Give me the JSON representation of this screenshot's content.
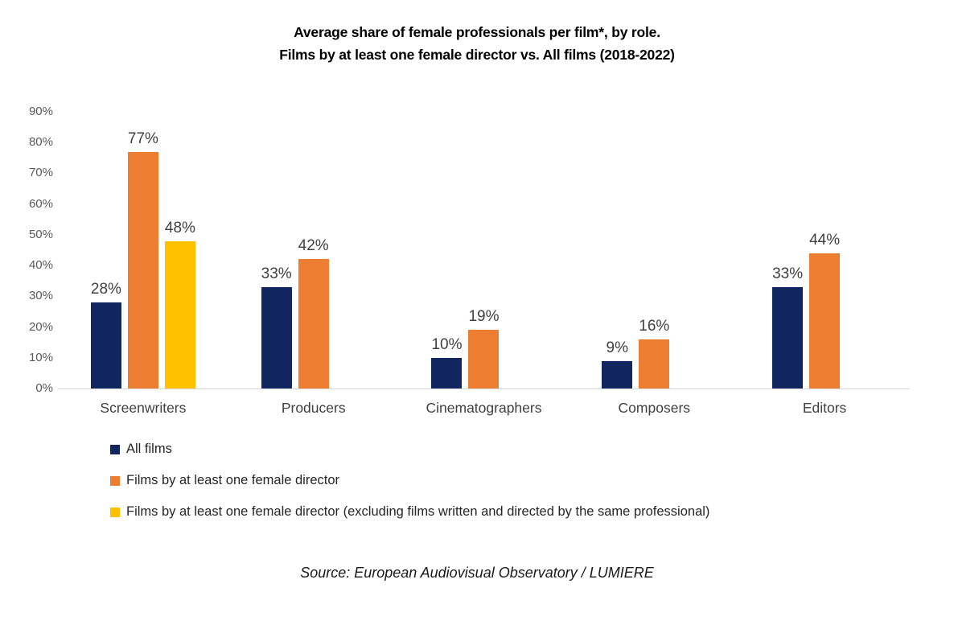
{
  "title": {
    "line1": "Average share of female professionals per film*, by role.",
    "line2": "Films by at least one female director vs. All films (2018-2022)"
  },
  "source": "Source: European Audiovisual Observatory / LUMIERE",
  "colors": {
    "bg": "#FFFFFF",
    "title": "#000000",
    "tick": "#595959",
    "value": "#404040",
    "cat": "#404040",
    "legend": "#262626",
    "axisline": "#D9D9D9",
    "source": "#1A1A1A"
  },
  "chart_data": {
    "type": "bar",
    "categories": [
      "Screenwriters",
      "Producers",
      "Cinematographers",
      "Composers",
      "Editors"
    ],
    "series": [
      {
        "name": "All films",
        "color": "#11265F",
        "values": [
          28,
          33,
          10,
          9,
          33
        ]
      },
      {
        "name": "Films by at least one female director",
        "color": "#ED7D31",
        "values": [
          77,
          42,
          19,
          16,
          44
        ]
      },
      {
        "name": "Films by at least one female director (excluding films written and directed by the same professional)",
        "color": "#FFC000",
        "values": [
          48,
          null,
          null,
          null,
          null
        ]
      }
    ],
    "xlabel": "",
    "ylabel": "",
    "ylim": [
      0,
      90
    ],
    "y_axis_ticks": [
      "0%",
      "10%",
      "20%",
      "30%",
      "40%",
      "50%",
      "60%",
      "70%",
      "80%",
      "90%"
    ],
    "value_label_suffix": "%",
    "grid": false,
    "legend_position": "bottom-left"
  }
}
